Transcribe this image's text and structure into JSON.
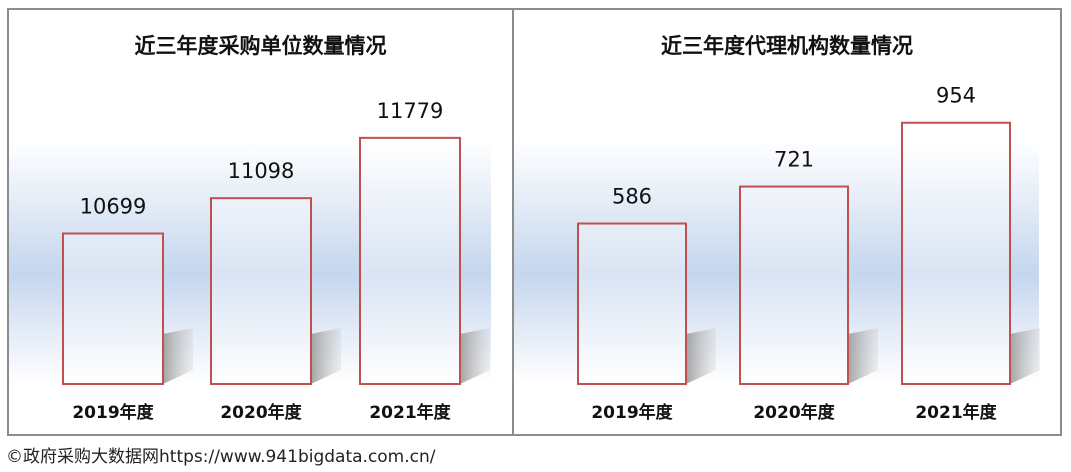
{
  "chart_data": [
    {
      "type": "bar",
      "title": "近三年度采购单位数量情况",
      "categories": [
        "2019年度",
        "2020年度",
        "2021年度"
      ],
      "values": [
        10699,
        11098,
        11779
      ],
      "ylim": [
        9000,
        12500
      ],
      "grid": false,
      "legend": "none",
      "bar_fill": "#ffffff",
      "bar_stroke": "#c0504d"
    },
    {
      "type": "bar",
      "title": "近三年度代理机构数量情况",
      "categories": [
        "2019年度",
        "2020年度",
        "2021年度"
      ],
      "values": [
        586,
        721,
        954
      ],
      "ylim": [
        0,
        1132
      ],
      "grid": false,
      "legend": "none",
      "bar_fill": "#ffffff",
      "bar_stroke": "#c0504d"
    }
  ],
  "footer": "©政府采购大数据网https://www.941bigdata.com.cn/",
  "colors": {
    "band": "#c5d6ee",
    "border": "#8c8c8c",
    "bar_stroke": "#c0504d"
  }
}
